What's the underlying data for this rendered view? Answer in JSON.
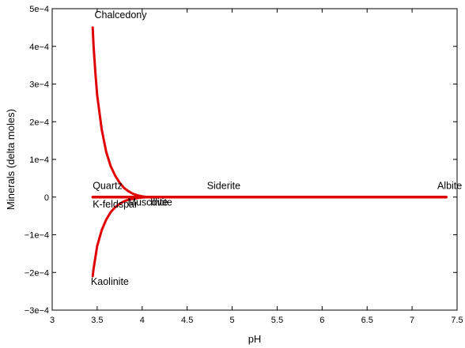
{
  "chart_data": {
    "type": "line",
    "title": "",
    "xlabel": "pH",
    "ylabel": "Minerals (delta moles)",
    "xlim": [
      3,
      7.5
    ],
    "ylim": [
      -0.0003,
      0.0005
    ],
    "x_ticks": [
      3,
      3.5,
      4,
      4.5,
      5,
      5.5,
      6,
      6.5,
      7,
      7.5
    ],
    "x_tick_labels": [
      "3",
      "3.5",
      "4",
      "4.5",
      "5",
      "5.5",
      "6",
      "6.5",
      "7",
      "7.5"
    ],
    "y_ticks": [
      -0.0003,
      -0.0002,
      -0.0001,
      0,
      0.0001,
      0.0002,
      0.0003,
      0.0004,
      0.0005
    ],
    "y_tick_labels": [
      "−3e−4",
      "−2e−4",
      "−1e−4",
      "0",
      "1e−4",
      "2e−4",
      "3e−4",
      "4e−4",
      "5e−4"
    ],
    "grid": false,
    "line_color": "#e00000",
    "series": [
      {
        "name": "Chalcedony",
        "x": [
          3.45,
          3.46,
          3.48,
          3.5,
          3.55,
          3.6,
          3.65,
          3.7,
          3.75,
          3.8,
          3.85,
          3.9,
          3.95,
          4.0,
          4.05,
          7.38
        ],
        "y": [
          0.00045,
          0.0004,
          0.00033,
          0.00027,
          0.00018,
          0.00012,
          8.2e-05,
          5.7e-05,
          3.8e-05,
          2.4e-05,
          1.5e-05,
          8.5e-06,
          4.5e-06,
          1.8e-06,
          4e-07,
          0
        ]
      },
      {
        "name": "Kaolinite",
        "x": [
          3.45,
          3.46,
          3.48,
          3.5,
          3.55,
          3.6,
          3.65,
          3.7,
          3.75,
          3.8,
          3.85,
          3.9,
          3.95,
          4.0,
          4.05,
          7.38
        ],
        "y": [
          -0.00021,
          -0.00019,
          -0.00016,
          -0.00013,
          -8.8e-05,
          -6e-05,
          -4e-05,
          -2.7e-05,
          -1.8e-05,
          -1.1e-05,
          -7e-06,
          -4.5e-06,
          -2.5e-06,
          -1e-06,
          -2e-07,
          0
        ]
      },
      {
        "name": "Quartz",
        "x": [
          3.45,
          7.38
        ],
        "y": [
          4e-07,
          4e-07
        ]
      },
      {
        "name": "K-feldspar",
        "x": [
          3.45,
          7.38
        ],
        "y": [
          -4e-07,
          -4e-07
        ]
      }
    ],
    "annotations": [
      {
        "text": "Chalcedony",
        "x": 3.47,
        "y": 0.000475
      },
      {
        "text": "Quartz",
        "x": 3.45,
        "y": 2.1e-05
      },
      {
        "text": "K-feldspar",
        "x": 3.45,
        "y": -2.8e-05
      },
      {
        "text": "Muscovite",
        "x": 3.84,
        "y": -2.2e-05
      },
      {
        "text": "Illite",
        "x": 4.09,
        "y": -2.2e-05
      },
      {
        "text": "Siderite",
        "x": 4.72,
        "y": 2.1e-05
      },
      {
        "text": "Albite",
        "x": 7.28,
        "y": 2.1e-05
      },
      {
        "text": "Kaolinite",
        "x": 3.43,
        "y": -0.000233
      }
    ]
  }
}
